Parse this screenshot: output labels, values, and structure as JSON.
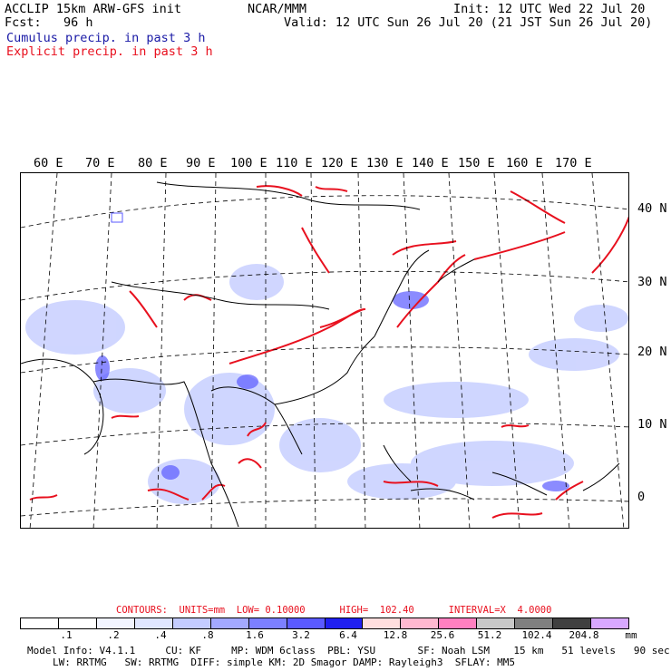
{
  "header": {
    "line1_left": "ACCLIP 15km ARW-GFS init",
    "line1_center": "NCAR/MMM",
    "line1_right": "Init: 12 UTC Wed 22 Jul 20",
    "line2_left": "Fcst:   96 h",
    "line2_right": "Valid: 12 UTC Sun 26 Jul 20 (21 JST Sun 26 Jul 20)",
    "line3": "Cumulus precip. in past 3 h",
    "line4": "Explicit precip. in past 3 h",
    "colors": {
      "cumulus": "#1a1aa6",
      "explicit": "#e8101e"
    }
  },
  "map": {
    "lon_labels": [
      "60 E",
      "70 E",
      "80 E",
      "90 E",
      "100 E",
      "110 E",
      "120 E",
      "130 E",
      "140 E",
      "150 E",
      "160 E",
      "170 E"
    ],
    "lat_labels": [
      "40 N",
      "30 N",
      "20 N",
      "10 N",
      "0"
    ]
  },
  "contours_line": "CONTOURS:  UNITS=mm  LOW= 0.10000      HIGH=  102.40      INTERVAL=X  4.0000",
  "legend": {
    "colors": [
      "#ffffff",
      "#ffffff",
      "#f2f4ff",
      "#e0e6ff",
      "#c4ccff",
      "#a3a9ff",
      "#7c80ff",
      "#5a5aff",
      "#2020f0",
      "#ffdede",
      "#ffb8d0",
      "#ff80c0",
      "#c8c8c8",
      "#808080",
      "#404040",
      "#d8a8ff"
    ],
    "ticks": [
      ".1",
      ".2",
      ".4",
      ".8",
      "1.6",
      "3.2",
      "6.4",
      "12.8",
      "25.6",
      "51.2",
      "102.4",
      "204.8"
    ],
    "unit": "mm"
  },
  "model_info": {
    "line1": "Model Info: V4.1.1     CU: KF     MP: WDM 6class  PBL: YSU       SF: Noah LSM    15 km   51 levels   90 sec",
    "line2": "LW: RRTMG   SW: RRTMG  DIFF: simple KM: 2D Smagor DAMP: Rayleigh3  SFLAY: MM5"
  }
}
